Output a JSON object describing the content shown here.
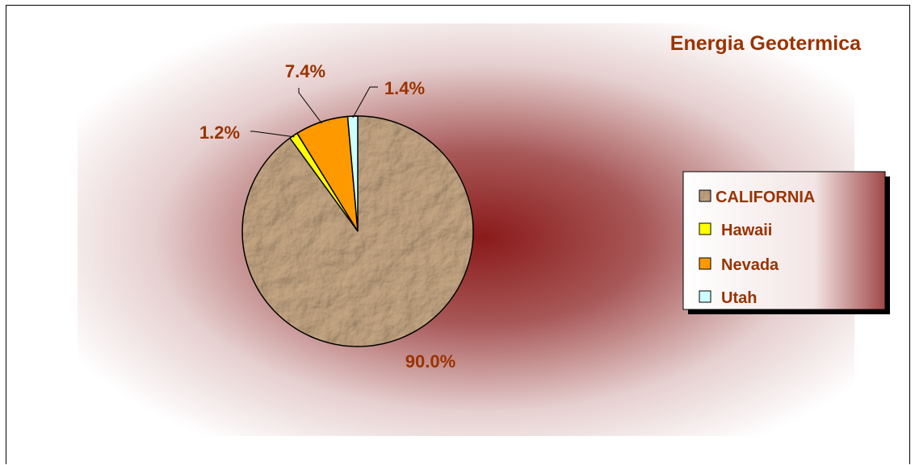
{
  "chart_data": {
    "type": "pie",
    "title": "Energia Geotermica",
    "categories": [
      "CALIFORNIA",
      "Hawaii",
      "Nevada",
      "Utah"
    ],
    "values": [
      90.0,
      1.2,
      7.4,
      1.4
    ],
    "labels": [
      "90.0%",
      "1.2%",
      "7.4%",
      "1.4%"
    ],
    "colors": [
      "#b89a78",
      "#ffff00",
      "#ff9900",
      "#ccffff"
    ],
    "text_color": "#993300",
    "background_color": "#8b1a1a",
    "legend_position": "right"
  }
}
